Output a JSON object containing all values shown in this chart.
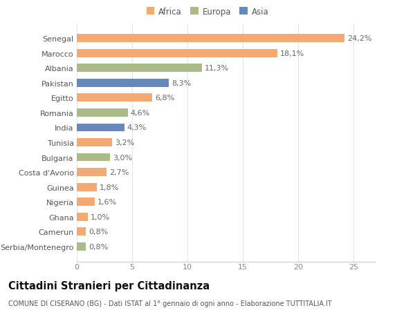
{
  "categories": [
    "Serbia/Montenegro",
    "Camerun",
    "Ghana",
    "Nigeria",
    "Guinea",
    "Costa d'Avorio",
    "Bulgaria",
    "Tunisia",
    "India",
    "Romania",
    "Egitto",
    "Pakistan",
    "Albania",
    "Marocco",
    "Senegal"
  ],
  "values": [
    0.8,
    0.8,
    1.0,
    1.6,
    1.8,
    2.7,
    3.0,
    3.2,
    4.3,
    4.6,
    6.8,
    8.3,
    11.3,
    18.1,
    24.2
  ],
  "labels": [
    "0,8%",
    "0,8%",
    "1,0%",
    "1,6%",
    "1,8%",
    "2,7%",
    "3,0%",
    "3,2%",
    "4,3%",
    "4,6%",
    "6,8%",
    "8,3%",
    "11,3%",
    "18,1%",
    "24,2%"
  ],
  "continents": [
    "Europa",
    "Africa",
    "Africa",
    "Africa",
    "Africa",
    "Africa",
    "Europa",
    "Africa",
    "Asia",
    "Europa",
    "Africa",
    "Asia",
    "Europa",
    "Africa",
    "Africa"
  ],
  "colors": {
    "Africa": "#F2AA72",
    "Europa": "#AABB88",
    "Asia": "#6688BB"
  },
  "legend_labels": [
    "Africa",
    "Europa",
    "Asia"
  ],
  "legend_colors": [
    "#F2AA72",
    "#AABB88",
    "#6688BB"
  ],
  "xlim": [
    0,
    27
  ],
  "xticks": [
    0,
    5,
    10,
    15,
    20,
    25
  ],
  "title": "Cittadini Stranieri per Cittadinanza",
  "subtitle": "COMUNE DI CISERANO (BG) - Dati ISTAT al 1° gennaio di ogni anno - Elaborazione TUTTITALIA.IT",
  "background_color": "#ffffff",
  "bar_height": 0.55,
  "label_fontsize": 8,
  "ytick_fontsize": 8,
  "xtick_fontsize": 8,
  "title_fontsize": 10.5,
  "subtitle_fontsize": 7
}
